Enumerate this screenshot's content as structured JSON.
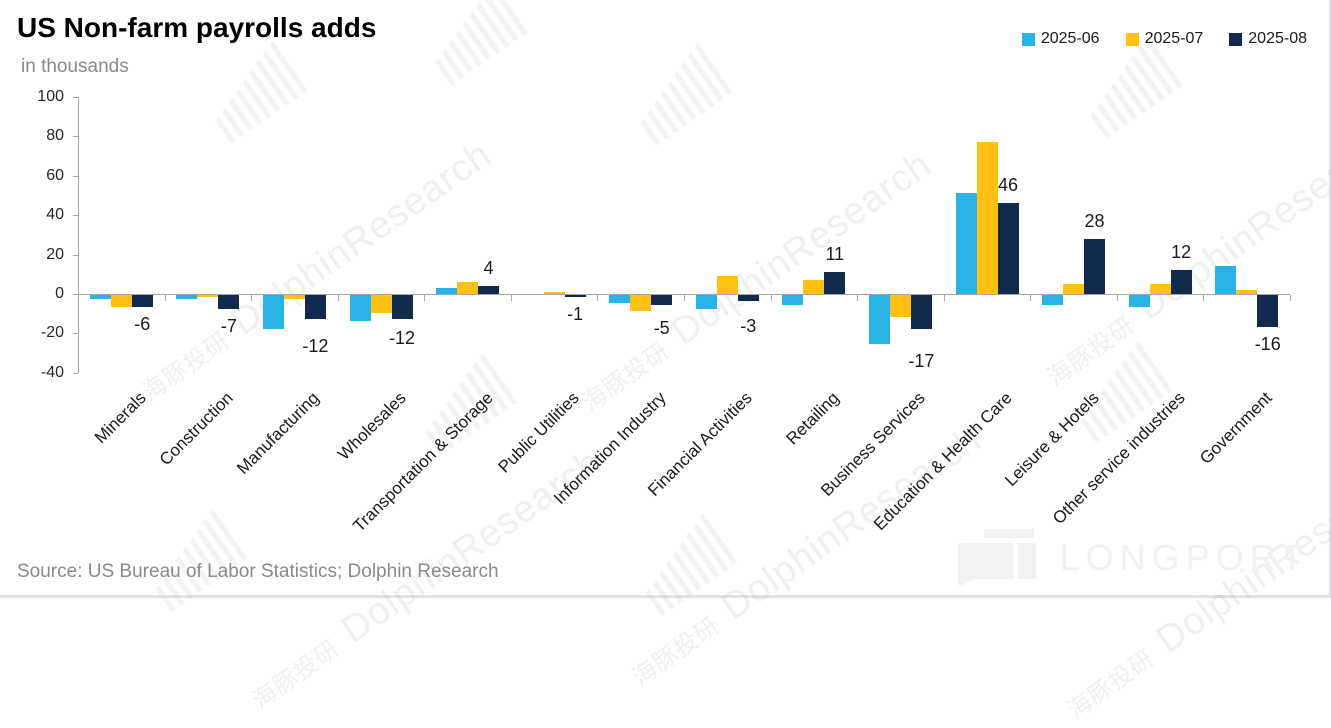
{
  "header": {
    "title": "US Non-farm payrolls adds",
    "subtitle": "in thousands"
  },
  "legend": [
    {
      "label": "2025-06",
      "color": "#29B2E6"
    },
    {
      "label": "2025-07",
      "color": "#FFC013"
    },
    {
      "label": "2025-08",
      "color": "#12294E"
    }
  ],
  "chart_data": {
    "type": "bar",
    "title": "US Non-farm payrolls adds",
    "unit_label": "in thousands",
    "categories": [
      "Minerals",
      "Construction",
      "Manufacturing",
      "Wholesales",
      "Transportation & Storage",
      "Public Utilities",
      "Information Industry",
      "Financial Activities",
      "Retailing",
      "Business Services",
      "Education & Health Care",
      "Leisure & Hotels",
      "Other service industries",
      "Government"
    ],
    "series": [
      {
        "name": "2025-06",
        "color": "#29B2E6",
        "values": [
          -2,
          -2,
          -17,
          -13,
          3,
          0,
          -4,
          -7,
          -5,
          -25,
          51,
          -5,
          -6,
          14
        ]
      },
      {
        "name": "2025-07",
        "color": "#FFC013",
        "values": [
          -6,
          -1,
          -2,
          -9,
          6,
          1,
          -8,
          9,
          7,
          -11,
          77,
          5,
          5,
          2
        ]
      },
      {
        "name": "2025-08",
        "color": "#12294E",
        "values": [
          -6,
          -7,
          -12,
          -12,
          4,
          -1,
          -5,
          -3,
          11,
          -17,
          46,
          28,
          12,
          -16
        ],
        "labeled": true
      }
    ],
    "data_labels": [
      "-6",
      "-7",
      "-12",
      "-12",
      "4",
      "-1",
      "-5",
      "-3",
      "11",
      "-17",
      "46",
      "28",
      "12",
      "-16"
    ],
    "y_ticks": [
      "100",
      "80",
      "60",
      "40",
      "20",
      "0",
      "-20",
      "-40"
    ],
    "ylim": [
      -40,
      100
    ],
    "grid": false,
    "legend_position": "top-right",
    "xlabel": "",
    "ylabel": "in thousands"
  },
  "watermark": {
    "cn": "海豚投研",
    "en": "DolphinResearch"
  },
  "footer": {
    "source": "Source: US Bureau of Labor Statistics; Dolphin Research",
    "brand": "LONGPORT"
  }
}
